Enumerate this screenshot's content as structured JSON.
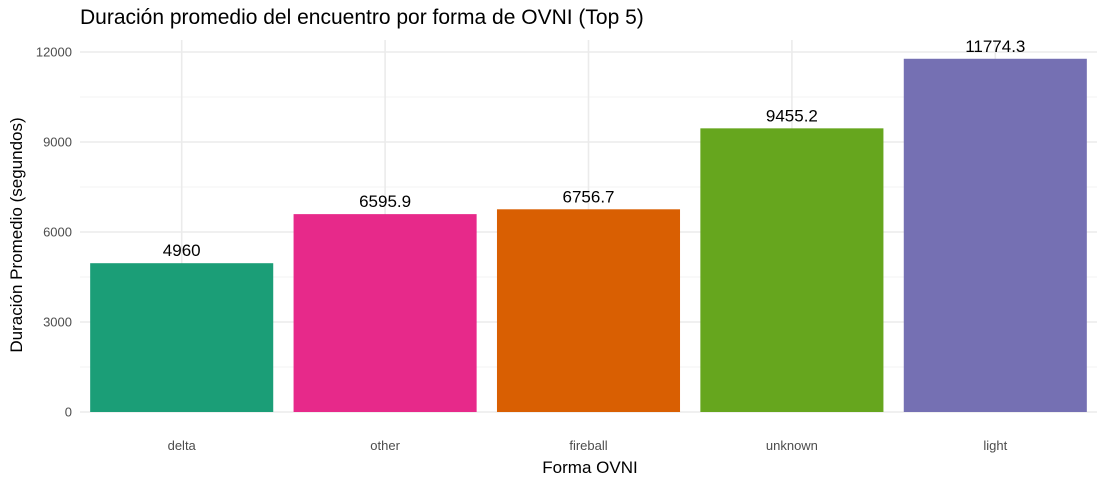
{
  "chart_data": {
    "type": "bar",
    "title": "Duración promedio del encuentro por forma de OVNI (Top 5)",
    "xlabel": "Forma OVNI",
    "ylabel": "Duración Promedio (segundos)",
    "categories": [
      "delta",
      "other",
      "fireball",
      "unknown",
      "light"
    ],
    "values": [
      4960,
      6595.9,
      6756.7,
      9455.2,
      11774.3
    ],
    "data_labels": [
      "4960",
      "6595.9",
      "6756.7",
      "9455.2",
      "11774.3"
    ],
    "colors": [
      "#1b9e77",
      "#e7298a",
      "#d95f02",
      "#66a61e",
      "#7570b3"
    ],
    "yticks": [
      0,
      3000,
      6000,
      9000,
      12000
    ],
    "ytick_labels": [
      "0",
      "3000",
      "6000",
      "9000",
      "12000"
    ],
    "ylim": [
      0,
      12000
    ],
    "grid": true,
    "legend": "none"
  }
}
